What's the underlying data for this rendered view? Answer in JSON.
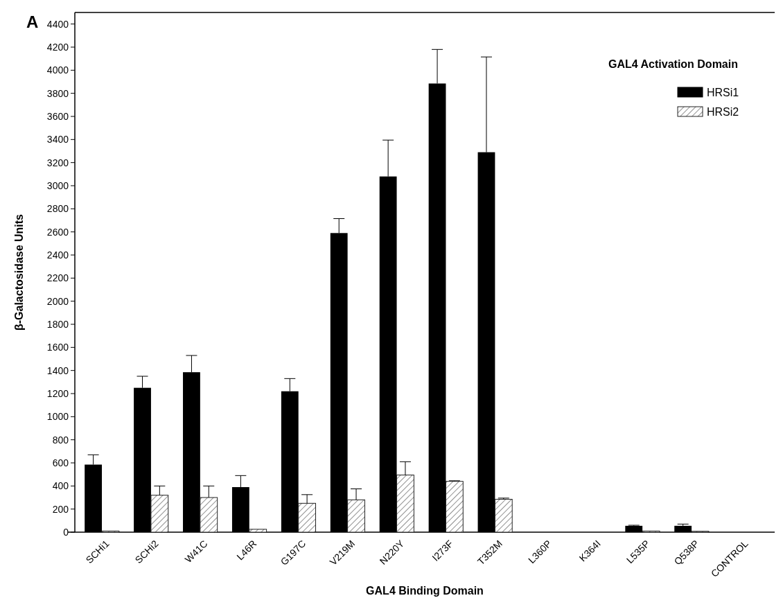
{
  "chart_data": {
    "type": "bar",
    "xlabel": "GAL4 Binding Domain",
    "ylabel": "β-Galactosidase Units",
    "legend_title": "GAL4 Activation Domain",
    "annotations": [
      "A"
    ],
    "categories": [
      "SCHi1",
      "SCHi2",
      "W41C",
      "L46R",
      "G197C",
      "V219M",
      "N220Y",
      "I273F",
      "T352M",
      "L360P",
      "K364I",
      "L535P",
      "Q538P",
      "CONTROL"
    ],
    "series": [
      {
        "name": "HRSi1",
        "color": "#000000",
        "values": [
          585,
          1250,
          1385,
          390,
          1220,
          2590,
          3080,
          3885,
          3290,
          null,
          0,
          55,
          55,
          null
        ],
        "errors": [
          85,
          100,
          145,
          100,
          110,
          125,
          315,
          295,
          825,
          null,
          null,
          5,
          15,
          null
        ]
      },
      {
        "name": "HRSi2",
        "color": "#222222",
        "values": [
          10,
          320,
          300,
          25,
          250,
          280,
          495,
          440,
          285,
          0,
          0,
          10,
          8,
          0
        ],
        "errors": [
          null,
          80,
          100,
          null,
          75,
          95,
          115,
          5,
          10,
          null,
          null,
          null,
          null,
          null
        ]
      }
    ],
    "ylim": [
      0,
      4500
    ],
    "yticks": [
      0,
      200,
      400,
      600,
      800,
      1000,
      1200,
      1400,
      1600,
      1800,
      2000,
      2200,
      2400,
      2600,
      2800,
      3000,
      3200,
      3400,
      3600,
      3800,
      4000,
      4200,
      4400
    ],
    "legend": "top right",
    "grid": false
  }
}
